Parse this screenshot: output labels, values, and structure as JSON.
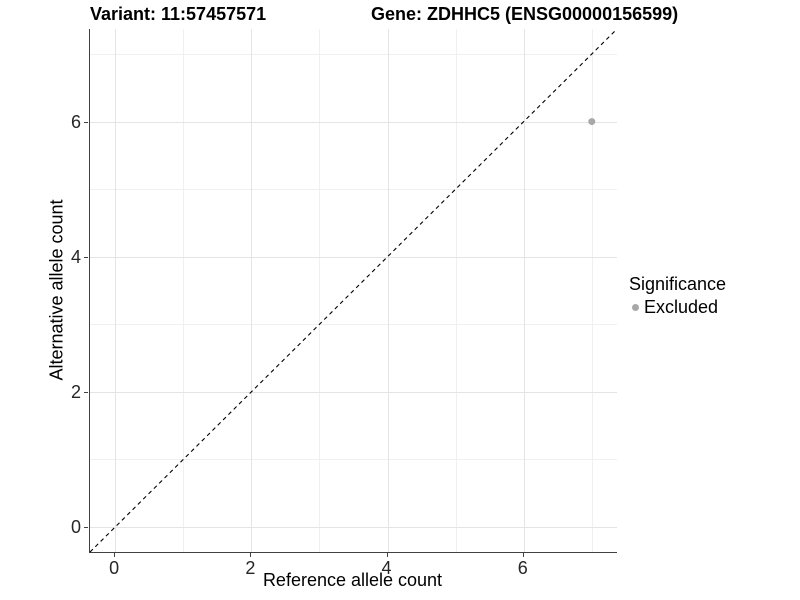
{
  "chart_data": {
    "type": "scatter",
    "title_left": "Variant: 11:57457571",
    "title_right": "Gene: ZDHHC5 (ENSG00000156599)",
    "xlabel": "Reference allele count",
    "ylabel": "Alternative allele count",
    "xlim": [
      -0.37,
      7.37
    ],
    "ylim": [
      -0.37,
      7.37
    ],
    "major_ticks": [
      0,
      2,
      4,
      6
    ],
    "minor_gridlines": [
      1,
      3,
      5,
      7
    ],
    "grid": true,
    "identity_line": {
      "style": "dashed",
      "from": [
        -0.37,
        -0.37
      ],
      "to": [
        7.37,
        7.37
      ],
      "color": "#000000"
    },
    "series": [
      {
        "name": "Excluded",
        "color": "#a8a8a8",
        "points": [
          {
            "x": 7,
            "y": 6
          }
        ]
      }
    ],
    "legend": {
      "position": "right",
      "title": "Significance",
      "items": [
        {
          "label": "Excluded",
          "color": "#a8a8a8"
        }
      ]
    },
    "colors": {
      "background": "#ffffff",
      "grid_major": "#e4e4e4",
      "grid_minor": "#f0f0f0",
      "axis_line": "#404040",
      "tick_text": "#262626",
      "dashed_line": "#000000"
    }
  }
}
